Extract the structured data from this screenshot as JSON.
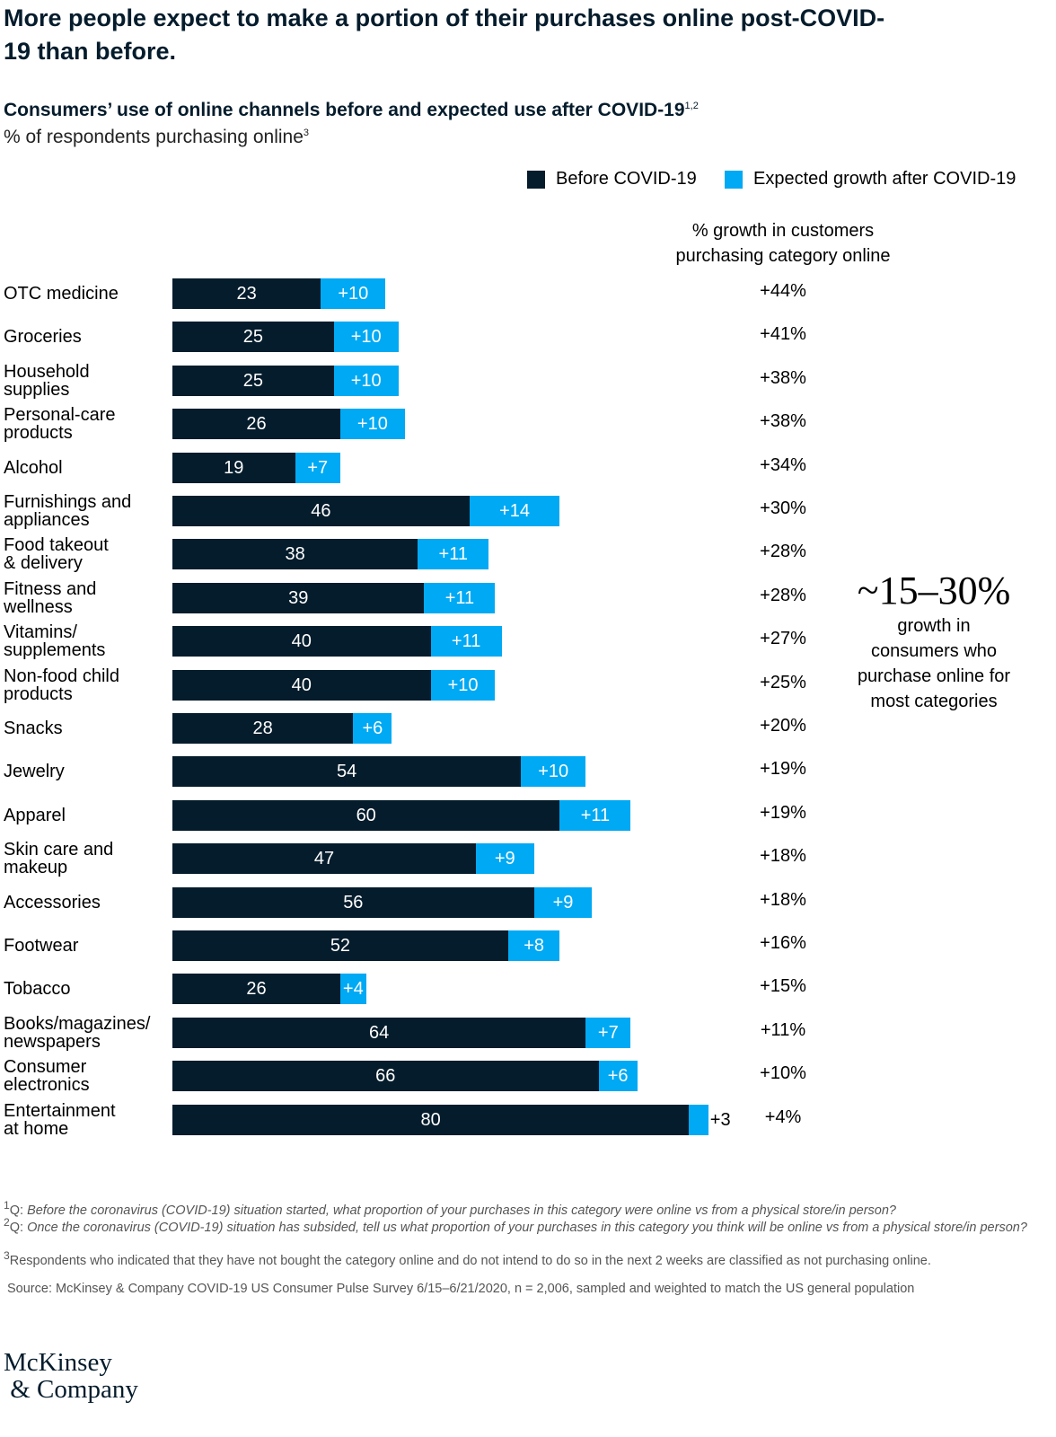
{
  "title": "More people expect to make a portion of their purchases online post-COVID-19 than before.",
  "colors": {
    "before": "#051c2c",
    "growth": "#00a9f4"
  },
  "chart_data": {
    "type": "bar",
    "stacked": true,
    "orientation": "horizontal",
    "title": "Consumers’ use of online channels before and expected use after COVID-19",
    "title_sup": "1,2",
    "subtitle": "% of respondents purchasing online",
    "subtitle_sup": "3",
    "legend": {
      "placement": "top-right",
      "before": "Before COVID-19",
      "growth": "Expected growth after COVID-19"
    },
    "growth_header": "% growth in customers purchasing category online",
    "categories": [
      "OTC medicine",
      "Groceries",
      "Household\nsupplies",
      "Personal-care\nproducts",
      "Alcohol",
      "Furnishings and\nappliances",
      "Food takeout\n& delivery",
      "Fitness and\nwellness",
      "Vitamins/\nsupplements",
      "Non-food child\nproducts",
      "Snacks",
      "Jewelry",
      "Apparel",
      "Skin care and\nmakeup",
      "Accessories",
      "Footwear",
      "Tobacco",
      "Books/magazines/\nnewspapers",
      "Consumer\nelectronics",
      "Entertainment\nat home"
    ],
    "series": [
      {
        "name": "Before COVID-19",
        "values": [
          23,
          25,
          25,
          26,
          19,
          46,
          38,
          39,
          40,
          40,
          28,
          54,
          60,
          47,
          56,
          52,
          26,
          64,
          66,
          80
        ]
      },
      {
        "name": "Expected growth after COVID-19",
        "values": [
          10,
          10,
          10,
          10,
          7,
          14,
          11,
          11,
          11,
          10,
          6,
          10,
          11,
          9,
          9,
          8,
          4,
          7,
          6,
          3
        ]
      }
    ],
    "growth_pct": [
      "+44%",
      "+41%",
      "+38%",
      "+38%",
      "+34%",
      "+30%",
      "+28%",
      "+28%",
      "+27%",
      "+25%",
      "+20%",
      "+19%",
      "+19%",
      "+18%",
      "+18%",
      "+16%",
      "+15%",
      "+11%",
      "+10%",
      "+4%"
    ],
    "xlim": [
      0,
      100
    ]
  },
  "callout": {
    "big": "~15–30%",
    "text": "growth in consumers who purchase online for most categories"
  },
  "footnotes": [
    {
      "sup": "1",
      "prefix": "Q: ",
      "text": "Before the coronavirus (COVID-19) situation started, what proportion of your purchases in this category were online vs from a physical store/in person?"
    },
    {
      "sup": "2",
      "prefix": "Q: ",
      "text": "Once the coronavirus (COVID-19) situation has subsided, tell us what proportion of your purchases in this category you think will be online vs from a physical store/in person?"
    },
    {
      "sup": "3",
      "prefix": "",
      "text": "Respondents who indicated that they have not bought the category online and do not intend to do so in the next 2 weeks are classified as not purchasing online."
    }
  ],
  "source": "Source: McKinsey & Company COVID-19 US Consumer Pulse Survey 6/15–6/21/2020, n = 2,006, sampled and weighted to match the US general population",
  "logo": "McKinsey & Company"
}
